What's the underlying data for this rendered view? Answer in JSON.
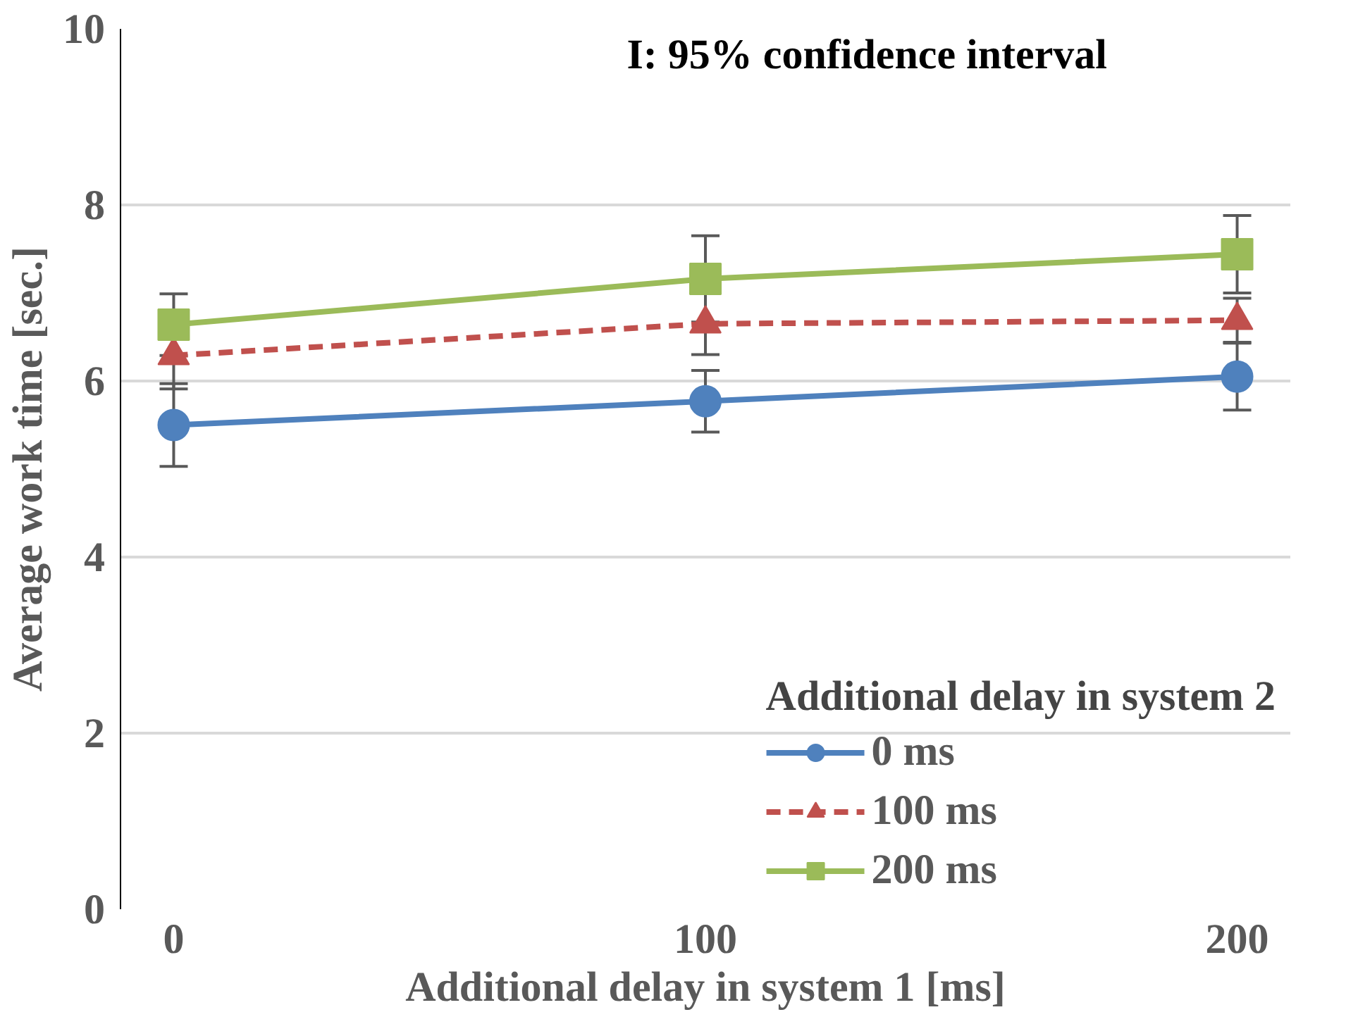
{
  "chart_data": {
    "type": "line",
    "xlabel": "Additional delay in system 1 [ms]",
    "ylabel": "Average work time [sec.]",
    "legend_title": "Additional delay in system 2",
    "annotations": [
      "I: 95% confidence interval"
    ],
    "x": [
      0,
      100,
      200
    ],
    "xlim": [
      -10,
      210
    ],
    "xticks": [
      0,
      100,
      200
    ],
    "ylim": [
      0,
      10
    ],
    "yticks": [
      0,
      2,
      4,
      6,
      8,
      10
    ],
    "grid": "y",
    "legend": "bottom right",
    "series": [
      {
        "name": "0 ms",
        "color": "#4f81bd",
        "marker": "circle",
        "line_style": "solid",
        "values": [
          5.5,
          5.77,
          6.05
        ],
        "errors": [
          0.47,
          0.35,
          0.38
        ]
      },
      {
        "name": "100 ms",
        "color": "#c0504d",
        "marker": "triangle",
        "line_style": "dashed",
        "values": [
          6.29,
          6.65,
          6.69
        ],
        "errors": [
          0.38,
          0.35,
          0.25
        ]
      },
      {
        "name": "200 ms",
        "color": "#9bbb59",
        "marker": "square",
        "line_style": "solid",
        "values": [
          6.64,
          7.16,
          7.44
        ],
        "errors": [
          0.35,
          0.49,
          0.44
        ]
      }
    ]
  }
}
